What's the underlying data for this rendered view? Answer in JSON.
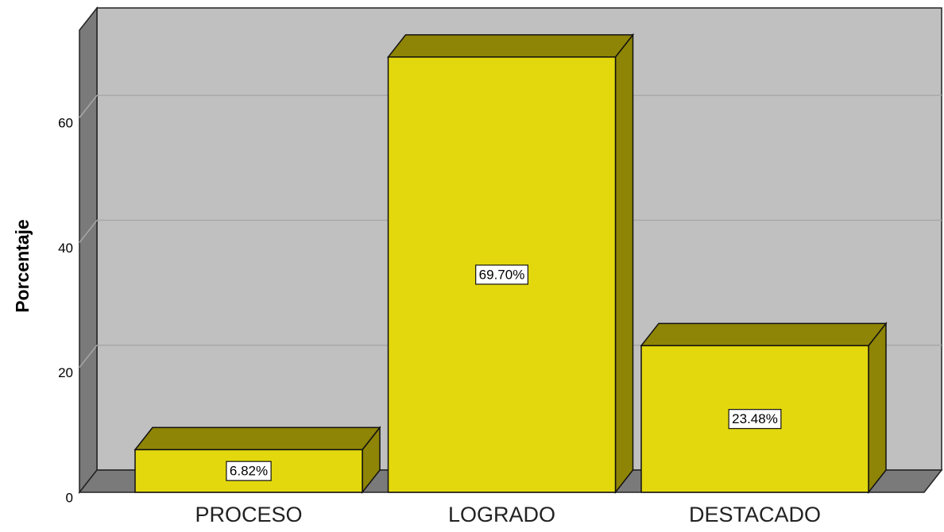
{
  "chart_data": {
    "type": "bar",
    "categories": [
      "PROCESO",
      "LOGRADO",
      "DESTACADO"
    ],
    "values": [
      6.82,
      69.7,
      23.48
    ],
    "value_labels": [
      "6.82%",
      "69.70%",
      "23.48%"
    ],
    "color": "#e3d80e",
    "y_label": "Porcentaje",
    "ylim": [
      0,
      74
    ],
    "yticks": [
      0,
      20,
      40,
      60
    ],
    "grid": true
  }
}
